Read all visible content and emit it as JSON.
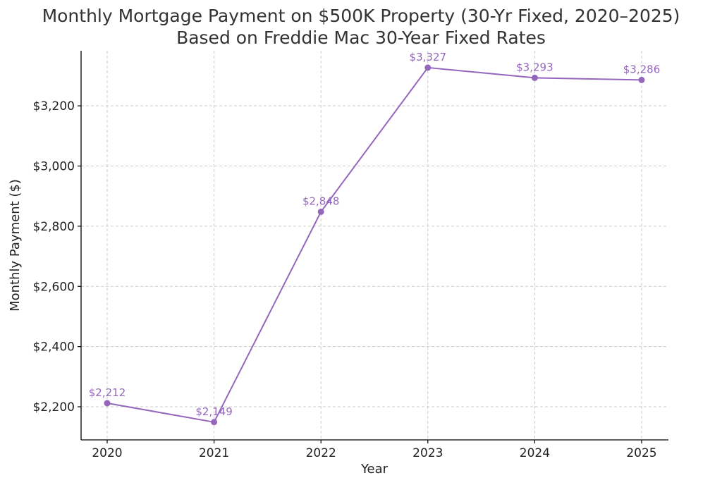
{
  "chart_data": {
    "type": "line",
    "title": "Monthly Mortgage Payment on $500K Property (30-Yr Fixed, 2020–2025)",
    "subtitle": "Based on Freddie Mac 30-Year Fixed Rates",
    "xlabel": "Year",
    "ylabel": "Monthly Payment ($)",
    "categories": [
      "2020",
      "2021",
      "2022",
      "2023",
      "2024",
      "2025"
    ],
    "series": [
      {
        "values": [
          2212,
          2149,
          2848,
          3327,
          3293,
          3286
        ],
        "data_labels": [
          "$2,212",
          "$2,149",
          "$2,848",
          "$3,327",
          "$3,293",
          "$3,286"
        ],
        "color": "#9467bd"
      }
    ],
    "yticks": [
      2200,
      2400,
      2600,
      2800,
      3000,
      3200
    ],
    "ytick_labels": [
      "$2,200",
      "$2,400",
      "$2,600",
      "$2,800",
      "$3,000",
      "$3,200"
    ],
    "ylim": [
      2090,
      3383
    ],
    "grid": true
  }
}
